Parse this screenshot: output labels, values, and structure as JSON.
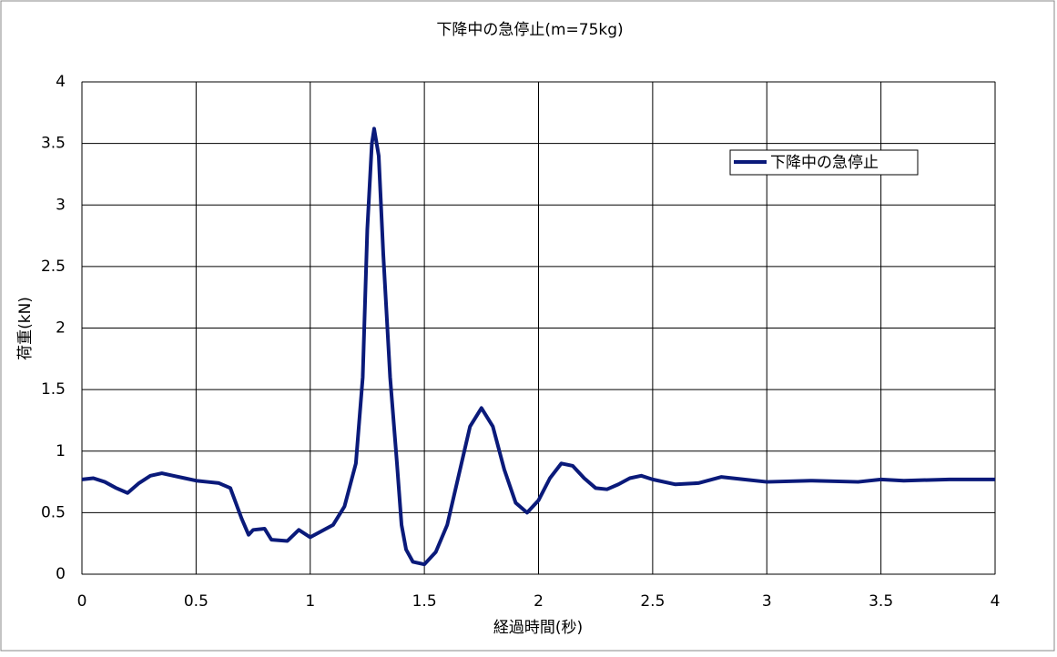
{
  "chart_data": {
    "type": "line",
    "title": "下降中の急停止(m=75kg)",
    "x_label": "経過時間(秒)",
    "y_label": "荷重(kN)",
    "x": [
      0,
      0.05,
      0.1,
      0.15,
      0.2,
      0.25,
      0.3,
      0.35,
      0.4,
      0.45,
      0.5,
      0.55,
      0.6,
      0.65,
      0.7,
      0.73,
      0.75,
      0.8,
      0.83,
      0.9,
      0.95,
      1.0,
      1.05,
      1.1,
      1.15,
      1.2,
      1.23,
      1.25,
      1.27,
      1.28,
      1.3,
      1.32,
      1.35,
      1.38,
      1.4,
      1.42,
      1.45,
      1.5,
      1.55,
      1.6,
      1.65,
      1.7,
      1.75,
      1.8,
      1.85,
      1.9,
      1.95,
      2.0,
      2.05,
      2.1,
      2.15,
      2.2,
      2.25,
      2.3,
      2.35,
      2.4,
      2.45,
      2.5,
      2.6,
      2.7,
      2.8,
      2.9,
      3.0,
      3.2,
      3.4,
      3.5,
      3.6,
      3.8,
      4.0
    ],
    "series": [
      {
        "name": "下降中の急停止",
        "color": "#0a1a7a",
        "values": [
          0.77,
          0.78,
          0.75,
          0.7,
          0.66,
          0.74,
          0.8,
          0.82,
          0.8,
          0.78,
          0.76,
          0.75,
          0.74,
          0.7,
          0.45,
          0.32,
          0.36,
          0.37,
          0.28,
          0.27,
          0.36,
          0.3,
          0.35,
          0.4,
          0.55,
          0.9,
          1.6,
          2.8,
          3.5,
          3.62,
          3.4,
          2.6,
          1.6,
          0.9,
          0.4,
          0.2,
          0.1,
          0.08,
          0.18,
          0.4,
          0.8,
          1.2,
          1.35,
          1.2,
          0.85,
          0.58,
          0.5,
          0.6,
          0.78,
          0.9,
          0.88,
          0.78,
          0.7,
          0.69,
          0.73,
          0.78,
          0.8,
          0.77,
          0.73,
          0.74,
          0.79,
          0.77,
          0.75,
          0.76,
          0.75,
          0.77,
          0.76,
          0.77,
          0.77
        ]
      }
    ],
    "xlim": [
      0,
      4
    ],
    "xticks": [
      0,
      0.5,
      1,
      1.5,
      2,
      2.5,
      3,
      3.5,
      4
    ],
    "ylim": [
      0,
      4
    ],
    "yticks": [
      0,
      0.5,
      1,
      1.5,
      2,
      2.5,
      3,
      3.5,
      4
    ],
    "grid": true,
    "legend": "upper right"
  }
}
